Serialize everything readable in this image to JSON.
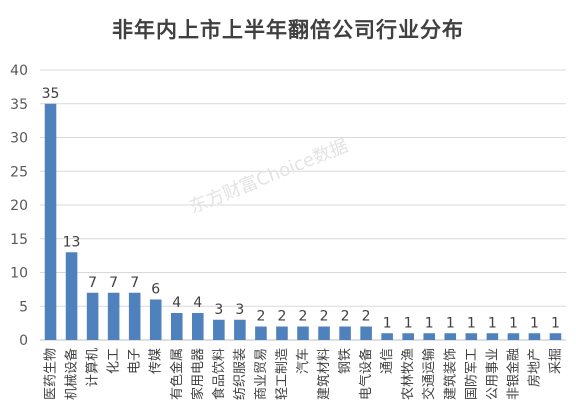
{
  "chart_data": {
    "type": "bar",
    "title": "非年内上市上半年翻倍公司行业分布",
    "categories": [
      "医药生物",
      "机械设备",
      "计算机",
      "化工",
      "电子",
      "传媒",
      "有色金属",
      "家用电器",
      "食品饮料",
      "纺织服装",
      "商业贸易",
      "轻工制造",
      "汽车",
      "建筑材料",
      "钢铁",
      "电气设备",
      "通信",
      "农林牧渔",
      "交通运输",
      "建筑装饰",
      "国防军工",
      "公用事业",
      "非银金融",
      "房地产",
      "采掘"
    ],
    "values": [
      35,
      13,
      7,
      7,
      7,
      6,
      4,
      4,
      3,
      3,
      2,
      2,
      2,
      2,
      2,
      2,
      1,
      1,
      1,
      1,
      1,
      1,
      1,
      1,
      1
    ],
    "ylim": [
      0,
      40
    ],
    "yticks": [
      0,
      5,
      10,
      15,
      20,
      25,
      30,
      35,
      40
    ],
    "grid": true,
    "bar_color": "#4f81bd",
    "data_labels": true
  },
  "watermark": "东方财富Choice数据"
}
